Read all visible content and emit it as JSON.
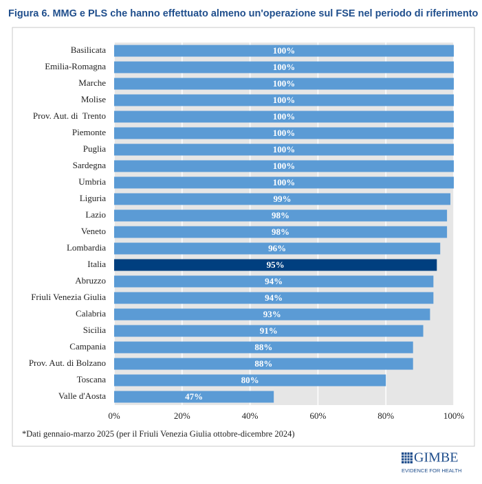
{
  "chart_data": {
    "type": "hbar",
    "title": "Figura 6. MMG e PLS che hanno effettuato almeno un'operazione sul FSE nel periodo di riferimento",
    "categories": [
      "Basilicata",
      "Emilia-Romagna",
      "Marche",
      "Molise",
      "Prov. Aut. di  Trento",
      "Piemonte",
      "Puglia",
      "Sardegna",
      "Umbria",
      "Liguria",
      "Lazio",
      "Veneto",
      "Lombardia",
      "Italia",
      "Abruzzo",
      "Friuli Venezia Giulia",
      "Calabria",
      "Sicilia",
      "Campania",
      "Prov. Aut. di Bolzano",
      "Toscana",
      "Valle d'Aosta"
    ],
    "values": [
      100,
      100,
      100,
      100,
      100,
      100,
      100,
      100,
      100,
      99,
      98,
      98,
      96,
      95,
      94,
      94,
      93,
      91,
      88,
      88,
      80,
      47
    ],
    "value_labels": [
      "100%",
      "100%",
      "100%",
      "100%",
      "100%",
      "100%",
      "100%",
      "100%",
      "100%",
      "99%",
      "98%",
      "98%",
      "96%",
      "95%",
      "94%",
      "94%",
      "93%",
      "91%",
      "88%",
      "88%",
      "80%",
      "47%"
    ],
    "colors": [
      "#5b9bd5",
      "#5b9bd5",
      "#5b9bd5",
      "#5b9bd5",
      "#5b9bd5",
      "#5b9bd5",
      "#5b9bd5",
      "#5b9bd5",
      "#5b9bd5",
      "#5b9bd5",
      "#5b9bd5",
      "#5b9bd5",
      "#5b9bd5",
      "#003f7f",
      "#5b9bd5",
      "#5b9bd5",
      "#5b9bd5",
      "#5b9bd5",
      "#5b9bd5",
      "#5b9bd5",
      "#5b9bd5",
      "#5b9bd5"
    ],
    "xlim": [
      0,
      100
    ],
    "xticks": [
      {
        "value": 0,
        "label": "0%"
      },
      {
        "value": 20,
        "label": "20%"
      },
      {
        "value": 40,
        "label": "40%"
      },
      {
        "value": 60,
        "label": "60%"
      },
      {
        "value": 80,
        "label": "80%"
      },
      {
        "value": 100,
        "label": "100%"
      }
    ],
    "grid": true,
    "footnote": "*Dati gennaio-marzo 2025 (per il Friuli Venezia Giulia ottobre-dicembre 2024)"
  },
  "logo": {
    "name": "GIMBE",
    "tagline": "EVIDENCE FOR HEALTH"
  }
}
